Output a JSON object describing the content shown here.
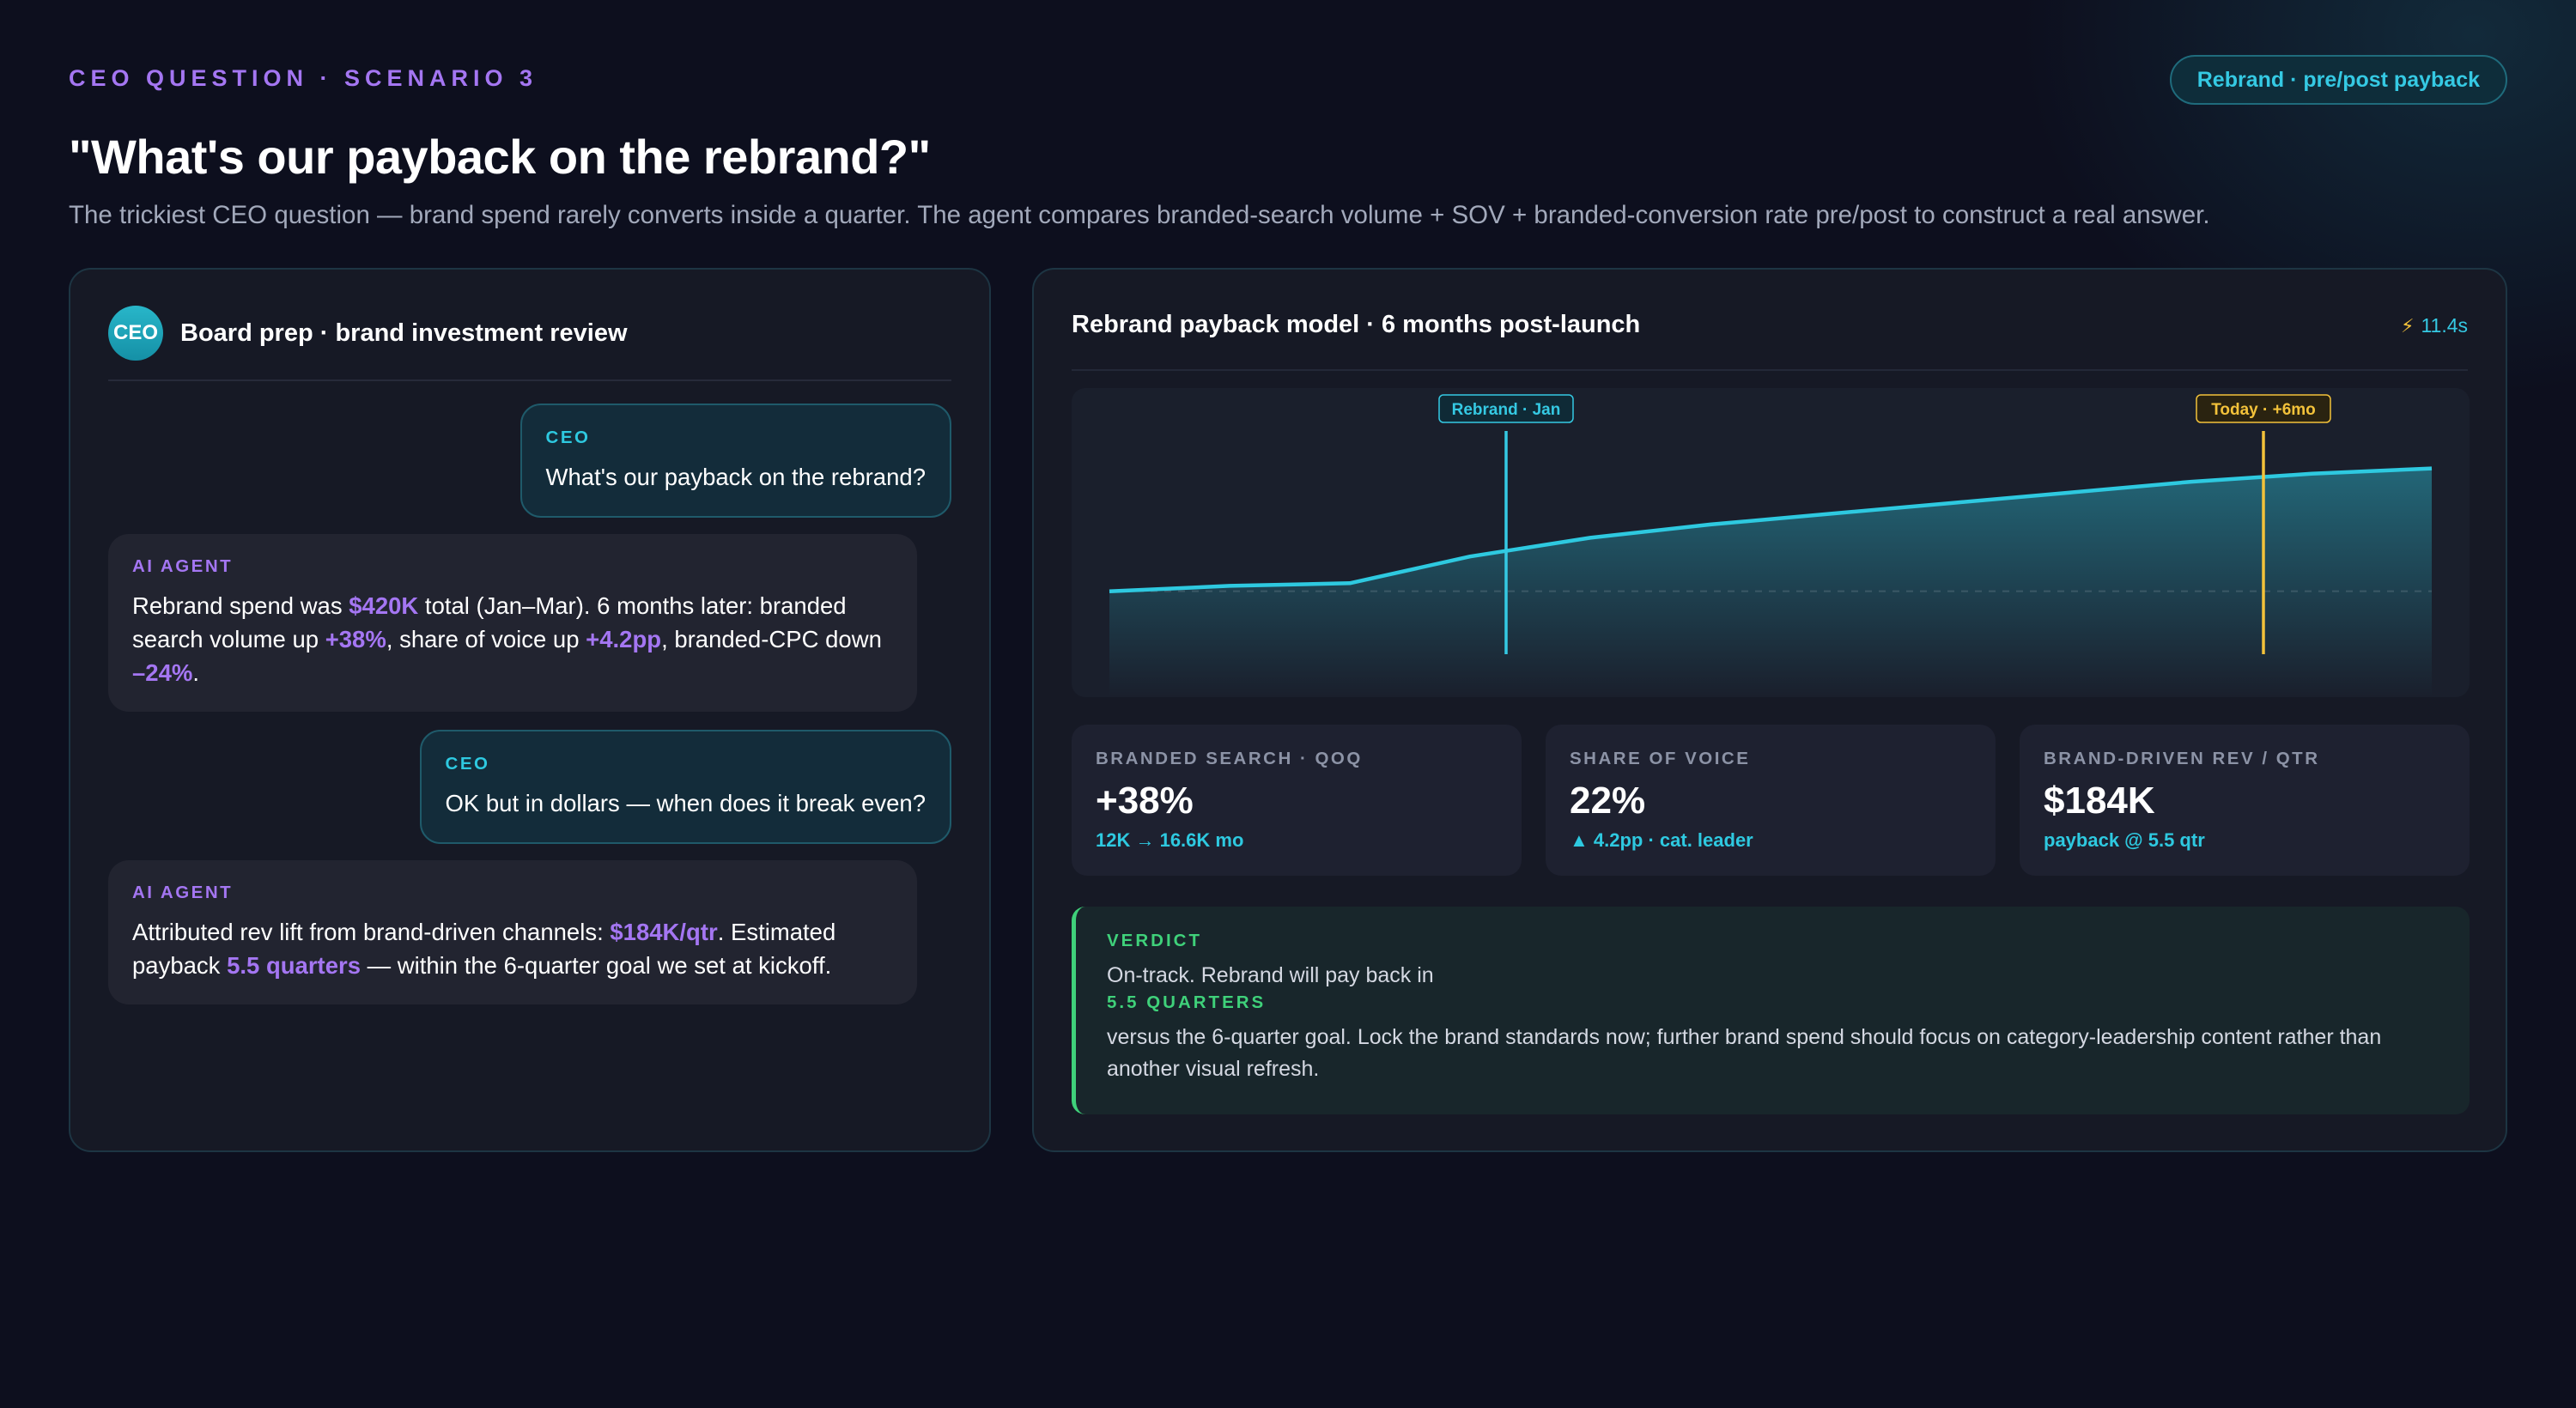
{
  "header": {
    "eyebrow": "CEO QUESTION · SCENARIO 3",
    "pill": "Rebrand · pre/post payback",
    "headline": "\"What's our payback on the rebrand?\"",
    "subhead": "The trickiest CEO question — brand spend rarely converts inside a quarter. The agent compares branded-search volume + SOV + branded-conversion rate pre/post to construct a real answer."
  },
  "chat": {
    "avatar": "CEO",
    "title": "Board prep · brand investment review",
    "messages": [
      {
        "role": "CEO",
        "text": "What's our payback on the rebrand?"
      },
      {
        "role": "AI AGENT",
        "parts": [
          {
            "t": "Rebrand spend was "
          },
          {
            "t": "$420K",
            "hl": true
          },
          {
            "t": " total (Jan–Mar). 6 months later: branded search volume up "
          },
          {
            "t": "+38%",
            "hl": true
          },
          {
            "t": ", share of voice up "
          },
          {
            "t": "+4.2pp",
            "hl": true
          },
          {
            "t": ", branded-CPC down "
          },
          {
            "t": "–24%",
            "hl": true
          },
          {
            "t": "."
          }
        ]
      },
      {
        "role": "CEO",
        "text": "OK but in dollars — when does it break even?"
      },
      {
        "role": "AI AGENT",
        "parts": [
          {
            "t": "Attributed rev lift from brand-driven channels: "
          },
          {
            "t": "$184K/qtr",
            "hl": true
          },
          {
            "t": ". Estimated payback "
          },
          {
            "t": "5.5 quarters",
            "hl": true
          },
          {
            "t": " — within the 6-quarter goal we set at kickoff."
          }
        ]
      }
    ]
  },
  "model": {
    "title": "Rebrand payback model · 6 months post-launch",
    "timer": "11.4s",
    "timer_icon": "lightning-bolt-icon",
    "chart_data": {
      "type": "area",
      "series": [
        {
          "values": [
            12.0,
            12.1,
            12.2,
            12.3,
            13.3,
            14.0,
            14.5,
            14.9,
            15.3,
            15.7,
            16.1,
            16.4,
            16.6
          ]
        }
      ],
      "x": [
        0,
        0.5,
        1,
        2,
        3,
        4,
        5,
        6,
        7,
        8,
        9,
        10,
        11
      ],
      "baseline": 12.0,
      "ylim": [
        9,
        18
      ],
      "markers": [
        {
          "label": "Rebrand · Jan",
          "x": 3.3,
          "color": "#35c9e3"
        },
        {
          "label": "Today · +6mo",
          "x": 9.6,
          "color": "#f3c23a"
        }
      ],
      "line_color": "#2ec9e0"
    },
    "metrics": [
      {
        "label": "BRANDED SEARCH · QOQ",
        "value": "+38%",
        "sub": "12K → 16.6K mo"
      },
      {
        "label": "SHARE OF VOICE",
        "value": "22%",
        "sub": "▲ 4.2pp · cat. leader"
      },
      {
        "label": "BRAND-DRIVEN REV / QTR",
        "value": "$184K",
        "sub": "payback @ 5.5 qtr"
      }
    ],
    "verdict": {
      "label": "VERDICT",
      "line1": "On-track. Rebrand will pay back in",
      "strong": "5.5 QUARTERS",
      "body": "versus the 6-quarter goal. Lock the brand standards now; further brand spend should focus on category-leadership content rather than another visual refresh."
    }
  }
}
